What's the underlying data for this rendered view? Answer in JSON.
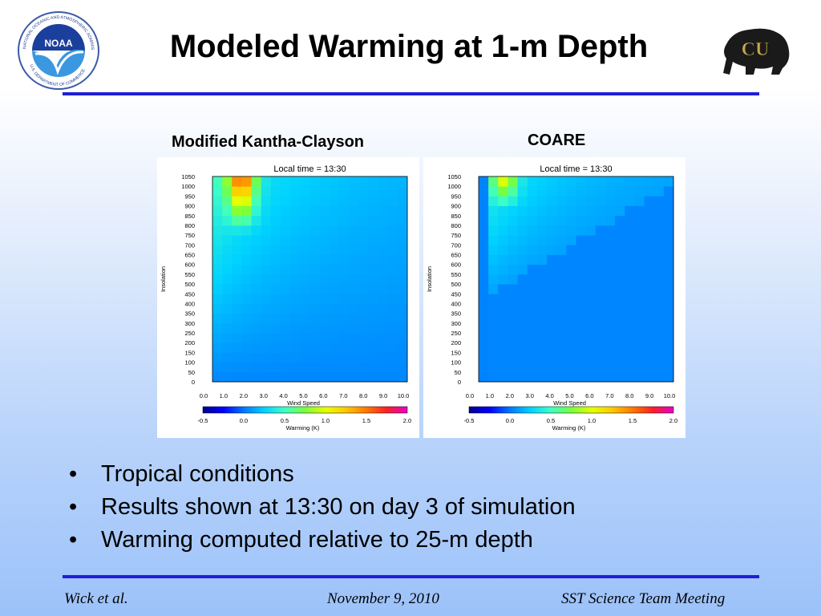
{
  "slide": {
    "title": "Modeled Warming at 1-m Depth",
    "left_panel_label": "Modified Kantha-Clayson",
    "right_panel_label": "COARE",
    "bullets": [
      "Tropical conditions",
      "Results shown at 13:30 on day 3 of simulation",
      "Warming computed relative to 25-m depth"
    ],
    "bullet_symbol": "•",
    "footer": {
      "left": "Wick et al.",
      "center": "November 9, 2010",
      "right": "SST Science Team Meeting"
    },
    "logos": {
      "noaa": {
        "text": "NOAA",
        "ring_text": "NATIONAL OCEANIC AND ATMOSPHERIC ADMINISTRATION",
        "ring_text_bottom": "U.S. DEPARTMENT OF COMMERCE"
      },
      "cu": {
        "text": "CU"
      }
    },
    "colors": {
      "rule": "#1f1fd8",
      "background_bottom": "#9cc2fa"
    }
  },
  "chart_data": [
    {
      "type": "heatmap",
      "title": "Local time = 13:30",
      "xlabel": "Wind Speed",
      "ylabel": "Insolation",
      "x_ticks": [
        "0.0",
        "1.0",
        "2.0",
        "3.0",
        "4.0",
        "5.0",
        "6.0",
        "7.0",
        "8.0",
        "9.0",
        "10.0"
      ],
      "y_ticks": [
        "0",
        "50",
        "100",
        "150",
        "200",
        "250",
        "300",
        "350",
        "400",
        "450",
        "500",
        "550",
        "600",
        "650",
        "700",
        "750",
        "800",
        "850",
        "900",
        "950",
        "1000",
        "1050"
      ],
      "x": [
        0.5,
        1.0,
        1.5,
        2.0,
        2.5,
        3.0,
        3.5,
        4.0,
        4.5,
        5.0,
        5.5,
        6.0,
        6.5,
        7.0,
        7.5,
        8.0,
        8.5,
        9.0,
        9.5,
        10.0
      ],
      "y": [
        25,
        75,
        125,
        175,
        225,
        275,
        325,
        375,
        425,
        475,
        525,
        575,
        625,
        675,
        725,
        775,
        825,
        875,
        925,
        975,
        1025
      ],
      "colorbar": {
        "label": "Warming (K)",
        "ticks": [
          "-0.5",
          "0.0",
          "0.5",
          "1.0",
          "1.5",
          "2.0"
        ],
        "range": [
          -0.5,
          2.0
        ]
      }
    },
    {
      "type": "heatmap",
      "title": "Local time = 13:30",
      "xlabel": "Wind Speed",
      "ylabel": "Insolation",
      "x_ticks": [
        "0.0",
        "1.0",
        "2.0",
        "3.0",
        "4.0",
        "5.0",
        "6.0",
        "7.0",
        "8.0",
        "9.0",
        "10.0"
      ],
      "y_ticks": [
        "0",
        "50",
        "100",
        "150",
        "200",
        "250",
        "300",
        "350",
        "400",
        "450",
        "500",
        "550",
        "600",
        "650",
        "700",
        "750",
        "800",
        "850",
        "900",
        "950",
        "1000",
        "1050"
      ],
      "x": [
        0.5,
        1.0,
        1.5,
        2.0,
        2.5,
        3.0,
        3.5,
        4.0,
        4.5,
        5.0,
        5.5,
        6.0,
        6.5,
        7.0,
        7.5,
        8.0,
        8.5,
        9.0,
        9.5,
        10.0
      ],
      "y": [
        25,
        75,
        125,
        175,
        225,
        275,
        325,
        375,
        425,
        475,
        525,
        575,
        625,
        675,
        725,
        775,
        825,
        875,
        925,
        975,
        1025
      ],
      "colorbar": {
        "label": "Warming (K)",
        "ticks": [
          "-0.5",
          "0.0",
          "0.5",
          "1.0",
          "1.5",
          "2.0"
        ],
        "range": [
          -0.5,
          2.0
        ]
      }
    }
  ]
}
